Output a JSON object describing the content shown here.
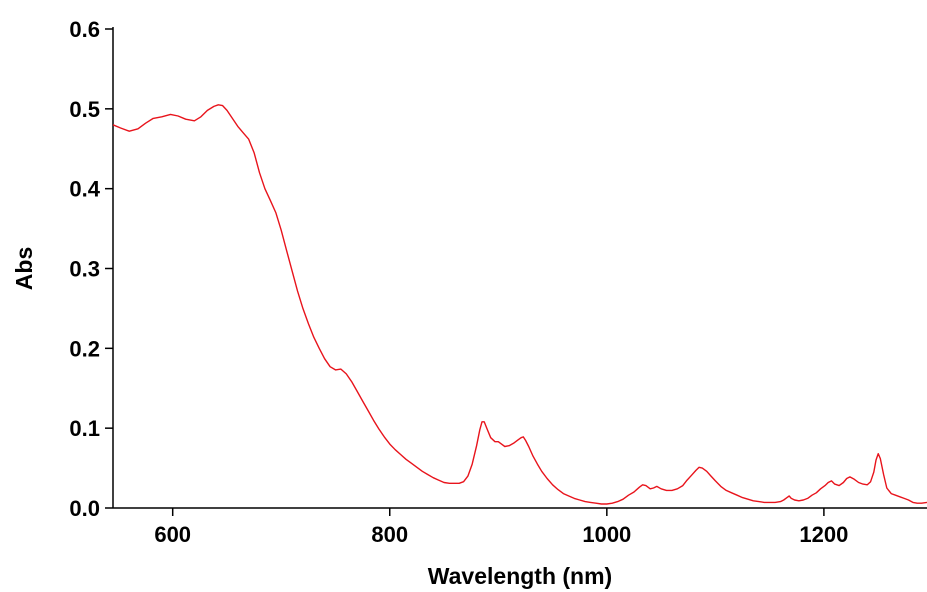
{
  "chart_data": {
    "type": "line",
    "title": "",
    "xlabel": "Wavelength (nm)",
    "ylabel": "Abs",
    "xlim": [
      545,
      1295
    ],
    "ylim": [
      0,
      0.6
    ],
    "x_ticks": [
      600,
      800,
      1000,
      1200
    ],
    "y_ticks": [
      0.0,
      0.1,
      0.2,
      0.3,
      0.4,
      0.5,
      0.6
    ],
    "x_tick_labels": [
      "600",
      "800",
      "1000",
      "1200"
    ],
    "y_tick_labels": [
      "0.0",
      "0.1",
      "0.2",
      "0.3",
      "0.4",
      "0.5",
      "0.6"
    ],
    "grid": false,
    "legend": "none",
    "colors": {
      "series": "#e8141c",
      "axes": "#000000"
    },
    "series": [
      {
        "x": [
          545,
          552,
          560,
          568,
          575,
          582,
          590,
          598,
          605,
          612,
          620,
          626,
          632,
          638,
          642,
          646,
          650,
          655,
          660,
          665,
          670,
          675,
          680,
          685,
          690,
          695,
          700,
          705,
          710,
          715,
          720,
          725,
          730,
          735,
          740,
          745,
          750,
          755,
          760,
          765,
          770,
          775,
          780,
          785,
          790,
          795,
          800,
          805,
          810,
          815,
          820,
          825,
          830,
          835,
          840,
          845,
          850,
          855,
          860,
          864,
          868,
          872,
          876,
          880,
          883,
          885,
          887,
          890,
          893,
          897,
          900,
          903,
          906,
          910,
          914,
          918,
          921,
          923,
          925,
          928,
          932,
          936,
          940,
          945,
          950,
          955,
          960,
          965,
          970,
          975,
          980,
          985,
          990,
          995,
          1000,
          1005,
          1010,
          1015,
          1020,
          1025,
          1030,
          1033,
          1036,
          1040,
          1043,
          1046,
          1050,
          1055,
          1060,
          1065,
          1070,
          1074,
          1078,
          1082,
          1085,
          1088,
          1092,
          1096,
          1100,
          1105,
          1110,
          1115,
          1120,
          1125,
          1130,
          1135,
          1140,
          1145,
          1150,
          1155,
          1160,
          1163,
          1166,
          1168,
          1170,
          1173,
          1177,
          1181,
          1185,
          1189,
          1193,
          1197,
          1201,
          1204,
          1207,
          1210,
          1214,
          1218,
          1221,
          1224,
          1228,
          1232,
          1236,
          1240,
          1243,
          1246,
          1248,
          1250,
          1252,
          1255,
          1258,
          1262,
          1266,
          1270,
          1274,
          1278,
          1282,
          1286,
          1290,
          1295
        ],
        "y": [
          0.48,
          0.476,
          0.472,
          0.475,
          0.482,
          0.488,
          0.49,
          0.493,
          0.491,
          0.487,
          0.485,
          0.49,
          0.498,
          0.503,
          0.505,
          0.504,
          0.498,
          0.488,
          0.478,
          0.47,
          0.462,
          0.445,
          0.42,
          0.4,
          0.385,
          0.37,
          0.348,
          0.322,
          0.297,
          0.272,
          0.25,
          0.231,
          0.214,
          0.2,
          0.187,
          0.177,
          0.173,
          0.174,
          0.168,
          0.158,
          0.146,
          0.134,
          0.122,
          0.11,
          0.099,
          0.089,
          0.08,
          0.073,
          0.067,
          0.061,
          0.056,
          0.051,
          0.046,
          0.042,
          0.038,
          0.035,
          0.032,
          0.031,
          0.031,
          0.031,
          0.033,
          0.04,
          0.055,
          0.078,
          0.098,
          0.108,
          0.108,
          0.098,
          0.088,
          0.083,
          0.083,
          0.08,
          0.077,
          0.078,
          0.081,
          0.085,
          0.088,
          0.089,
          0.085,
          0.077,
          0.065,
          0.055,
          0.046,
          0.037,
          0.029,
          0.023,
          0.018,
          0.015,
          0.012,
          0.01,
          0.008,
          0.007,
          0.006,
          0.005,
          0.005,
          0.006,
          0.008,
          0.011,
          0.016,
          0.02,
          0.026,
          0.029,
          0.028,
          0.024,
          0.025,
          0.027,
          0.024,
          0.022,
          0.022,
          0.024,
          0.028,
          0.035,
          0.041,
          0.047,
          0.051,
          0.05,
          0.046,
          0.04,
          0.034,
          0.027,
          0.022,
          0.019,
          0.016,
          0.013,
          0.011,
          0.009,
          0.008,
          0.007,
          0.007,
          0.007,
          0.008,
          0.01,
          0.013,
          0.015,
          0.012,
          0.01,
          0.009,
          0.01,
          0.012,
          0.016,
          0.019,
          0.024,
          0.028,
          0.032,
          0.034,
          0.03,
          0.028,
          0.032,
          0.037,
          0.039,
          0.036,
          0.032,
          0.03,
          0.029,
          0.033,
          0.045,
          0.06,
          0.068,
          0.062,
          0.042,
          0.025,
          0.018,
          0.016,
          0.014,
          0.012,
          0.01,
          0.007,
          0.006,
          0.006,
          0.007
        ]
      }
    ]
  }
}
